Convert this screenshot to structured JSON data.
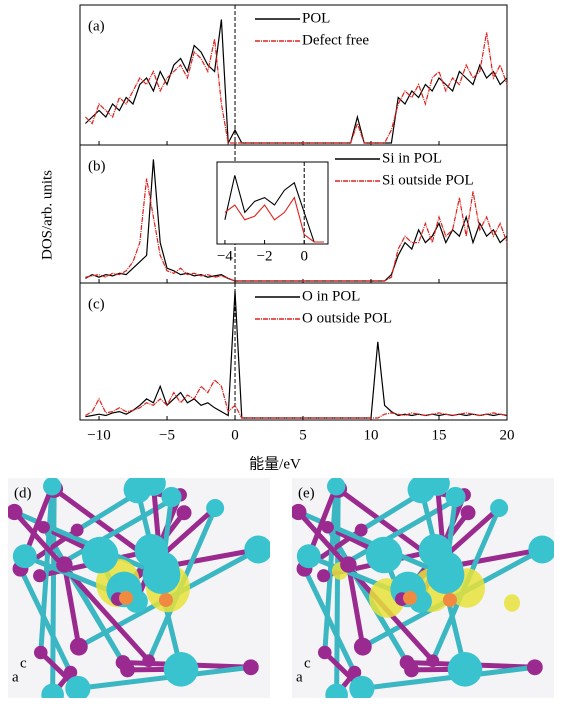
{
  "chart_data": [
    {
      "type": "line",
      "label": "(a)",
      "x": [
        -11,
        -10.5,
        -10,
        -9.5,
        -9,
        -8.5,
        -8,
        -7.5,
        -7,
        -6.5,
        -6,
        -5.5,
        -5,
        -4.5,
        -4,
        -3.5,
        -3,
        -2.5,
        -2,
        -1.5,
        -1,
        -0.5,
        0,
        0.5,
        1,
        1.5,
        2,
        2.5,
        3,
        3.5,
        4,
        4.5,
        5,
        5.5,
        6,
        6.5,
        7,
        7.5,
        8,
        8.5,
        9,
        9.5,
        10,
        10.5,
        11,
        11.5,
        12,
        12.5,
        13,
        13.5,
        14,
        14.5,
        15,
        15.5,
        16,
        16.5,
        17,
        17.5,
        18,
        18.5,
        19,
        19.5,
        20
      ],
      "series": [
        {
          "name": "POL",
          "color": "#000000",
          "values": [
            0.15,
            0.2,
            0.25,
            0.2,
            0.3,
            0.25,
            0.35,
            0.3,
            0.45,
            0.5,
            0.4,
            0.55,
            0.45,
            0.6,
            0.65,
            0.55,
            0.75,
            0.7,
            0.6,
            0.55,
            0.95,
            0,
            0.1,
            0,
            0,
            0,
            0,
            0,
            0,
            0,
            0,
            0,
            0,
            0,
            0,
            0,
            0,
            0,
            0,
            0,
            0.2,
            0,
            0,
            0,
            0,
            0,
            0.35,
            0.3,
            0.4,
            0.35,
            0.45,
            0.4,
            0.5,
            0.45,
            0.4,
            0.55,
            0.5,
            0.45,
            0.6,
            0.5,
            0.55,
            0.45,
            0.5
          ]
        },
        {
          "name": "Defect free",
          "color": "#e0201c",
          "values": [
            0.2,
            0.15,
            0.3,
            0.25,
            0.2,
            0.35,
            0.3,
            0.4,
            0.5,
            0.45,
            0.55,
            0.4,
            0.5,
            0.55,
            0.6,
            0.5,
            0.7,
            0.65,
            0.55,
            0.8,
            0.3,
            0,
            0,
            0,
            0,
            0,
            0,
            0,
            0,
            0,
            0,
            0,
            0,
            0,
            0,
            0,
            0,
            0,
            0,
            0,
            0.15,
            0,
            0,
            0,
            0,
            0.1,
            0.3,
            0.4,
            0.35,
            0.45,
            0.3,
            0.5,
            0.55,
            0.4,
            0.5,
            0.45,
            0.6,
            0.5,
            0.55,
            0.85,
            0.5,
            0.6,
            0.45
          ]
        }
      ],
      "xlim": [
        -11.4,
        20
      ],
      "ylim": [
        0,
        1
      ],
      "vline": 0,
      "legend": "upper center"
    },
    {
      "type": "line",
      "label": "(b)",
      "ylabel": "DOS/arb. units",
      "x": [
        -11,
        -10.5,
        -10,
        -9.5,
        -9,
        -8.5,
        -8,
        -7.5,
        -7,
        -6.5,
        -6,
        -5.5,
        -5,
        -4.5,
        -4,
        -3.5,
        -3,
        -2.5,
        -2,
        -1.5,
        -1,
        -0.5,
        0,
        0.5,
        1,
        1.5,
        2,
        2.5,
        3,
        3.5,
        4,
        4.5,
        5,
        5.5,
        6,
        6.5,
        7,
        7.5,
        8,
        8.5,
        9,
        9.5,
        10,
        10.5,
        11,
        11.5,
        12,
        12.5,
        13,
        13.5,
        14,
        14.5,
        15,
        15.5,
        16,
        16.5,
        17,
        17.5,
        18,
        18.5,
        19,
        19.5,
        20
      ],
      "series": [
        {
          "name": "Si in POL",
          "color": "#000000",
          "values": [
            0.02,
            0.05,
            0.03,
            0.05,
            0.04,
            0.06,
            0.05,
            0.1,
            0.15,
            0.2,
            0.95,
            0.3,
            0.1,
            0.08,
            0.05,
            0.06,
            0.04,
            0.05,
            0.03,
            0.04,
            0.05,
            0.02,
            0,
            0,
            0,
            0,
            0,
            0,
            0,
            0,
            0,
            0,
            0,
            0,
            0,
            0,
            0,
            0,
            0,
            0,
            0,
            0,
            0,
            0,
            0,
            0.05,
            0.2,
            0.3,
            0.25,
            0.4,
            0.3,
            0.35,
            0.45,
            0.3,
            0.4,
            0.35,
            0.5,
            0.3,
            0.45,
            0.35,
            0.4,
            0.3,
            0.35
          ]
        },
        {
          "name": "Si outside POL",
          "color": "#e0201c",
          "values": [
            0.03,
            0.04,
            0.05,
            0.03,
            0.06,
            0.05,
            0.08,
            0.15,
            0.3,
            0.8,
            0.5,
            0.2,
            0.08,
            0.06,
            0.1,
            0.05,
            0.06,
            0.04,
            0.05,
            0.03,
            0.04,
            0.02,
            0,
            0,
            0,
            0,
            0,
            0,
            0,
            0,
            0,
            0,
            0,
            0,
            0,
            0,
            0,
            0,
            0,
            0,
            0,
            0,
            0,
            0,
            0,
            0.03,
            0.25,
            0.35,
            0.3,
            0.3,
            0.45,
            0.3,
            0.5,
            0.35,
            0.4,
            0.65,
            0.35,
            0.7,
            0.4,
            0.5,
            0.35,
            0.45,
            0.3
          ]
        }
      ],
      "xlim": [
        -11.4,
        20
      ],
      "ylim": [
        0,
        1
      ],
      "vline": 0,
      "legend": "upper right",
      "inset": {
        "x": [
          -4,
          -3.5,
          -3,
          -2.5,
          -2,
          -1.5,
          -1,
          -0.5,
          0,
          0.5,
          1
        ],
        "series": [
          {
            "color": "#000000",
            "values": [
              0.3,
              0.9,
              0.4,
              0.55,
              0.6,
              0.5,
              0.7,
              0.8,
              0.4,
              0,
              0
            ]
          },
          {
            "color": "#e0201c",
            "values": [
              0.4,
              0.5,
              0.3,
              0.35,
              0.5,
              0.3,
              0.4,
              0.6,
              0.1,
              0,
              0
            ]
          }
        ],
        "xlim": [
          -4.4,
          1.2
        ],
        "ylim": [
          0,
          1
        ],
        "vline": 0,
        "xticks": [
          {
            "value": -4,
            "label": "−4"
          },
          {
            "value": -2,
            "label": "−2"
          },
          0
        ]
      }
    },
    {
      "type": "line",
      "label": "(c)",
      "xlabel": "能量/eV",
      "x": [
        -11,
        -10.5,
        -10,
        -9.5,
        -9,
        -8.5,
        -8,
        -7.5,
        -7,
        -6.5,
        -6,
        -5.5,
        -5,
        -4.5,
        -4,
        -3.5,
        -3,
        -2.5,
        -2,
        -1.5,
        -1,
        -0.5,
        0,
        0.5,
        1,
        1.5,
        2,
        2.5,
        3,
        3.5,
        4,
        4.5,
        5,
        5.5,
        6,
        6.5,
        7,
        7.5,
        8,
        8.5,
        9,
        9.5,
        10,
        10.5,
        11,
        11.5,
        12,
        12.5,
        13,
        13.5,
        14,
        14.5,
        15,
        15.5,
        16,
        16.5,
        17,
        17.5,
        18,
        18.5,
        19,
        19.5,
        20
      ],
      "series": [
        {
          "name": "O in POL",
          "color": "#000000",
          "values": [
            0.01,
            0.02,
            0.03,
            0.02,
            0.04,
            0.05,
            0.03,
            0.06,
            0.1,
            0.15,
            0.12,
            0.25,
            0.1,
            0.15,
            0.2,
            0.12,
            0.15,
            0.1,
            0.12,
            0.08,
            0.05,
            0.02,
            1,
            0,
            0,
            0,
            0,
            0,
            0,
            0,
            0,
            0,
            0,
            0,
            0,
            0,
            0,
            0,
            0,
            0,
            0,
            0,
            0,
            0.6,
            0.1,
            0.05,
            0.02,
            0.03,
            0.02,
            0.03,
            0.02,
            0.03,
            0.02,
            0.03,
            0.02,
            0.03,
            0.02,
            0.03,
            0.02,
            0.03,
            0.02,
            0.03,
            0.02
          ]
        },
        {
          "name": "O outside POL",
          "color": "#e0201c",
          "values": [
            0.02,
            0.05,
            0.15,
            0.04,
            0.05,
            0.08,
            0.05,
            0.06,
            0.08,
            0.12,
            0.1,
            0.15,
            0.1,
            0.2,
            0.12,
            0.18,
            0.15,
            0.25,
            0.2,
            0.3,
            0.25,
            0.05,
            0.1,
            0,
            0,
            0,
            0,
            0,
            0,
            0,
            0,
            0,
            0,
            0,
            0,
            0,
            0,
            0,
            0,
            0,
            0,
            0,
            0,
            0,
            0.03,
            0.04,
            0.03,
            0.02,
            0.04,
            0.03,
            0.02,
            0.03,
            0.04,
            0.03,
            0.02,
            0.03,
            0.04,
            0.03,
            0.02,
            0.03,
            0.04,
            0.03,
            0.02
          ]
        }
      ],
      "xlim": [
        -11.4,
        20
      ],
      "ylim": [
        0,
        1
      ],
      "vline": 0,
      "legend": "upper center",
      "xticks": [
        {
          "value": -10,
          "label": "−10"
        },
        {
          "value": -5,
          "label": "−5"
        },
        0,
        5,
        10,
        15,
        20
      ]
    }
  ],
  "images": [
    {
      "label": "(d)",
      "axes": [
        "c",
        "a"
      ]
    },
    {
      "label": "(e)",
      "axes": [
        "c",
        "a"
      ]
    }
  ]
}
